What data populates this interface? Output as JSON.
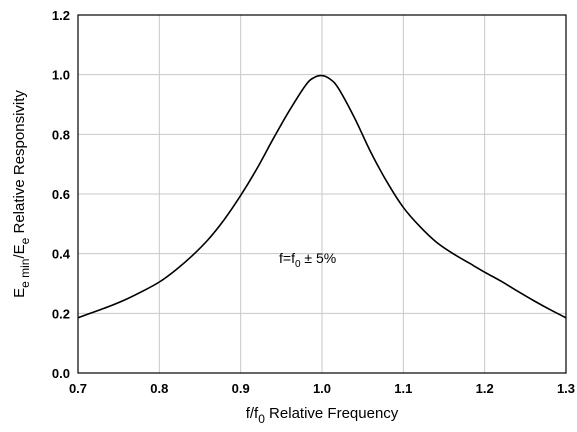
{
  "chart_data": {
    "type": "line",
    "title": "",
    "xlabel": {
      "main": "f/f",
      "sub": "0",
      "rest": " Relative Frequency"
    },
    "ylabel": {
      "p1": "E",
      "p1sub": "e min",
      "p2": "/E",
      "p2sub": "e",
      "rest": " Relative Responsivity"
    },
    "xlim": [
      0.7,
      1.3
    ],
    "ylim": [
      0.0,
      1.2
    ],
    "xticks": [
      "0.7",
      "0.8",
      "0.9",
      "1.0",
      "1.1",
      "1.2",
      "1.3"
    ],
    "yticks": [
      "0.0",
      "0.2",
      "0.4",
      "0.6",
      "0.8",
      "1.0",
      "1.2"
    ],
    "grid": true,
    "annotation": {
      "pre": "f=f",
      "sub": "0",
      "post": " ± 5%",
      "x": 1.0,
      "y": 0.385
    },
    "series": [
      {
        "x": [
          0.7,
          0.72,
          0.74,
          0.76,
          0.78,
          0.8,
          0.82,
          0.84,
          0.86,
          0.88,
          0.9,
          0.92,
          0.94,
          0.96,
          0.98,
          0.99,
          1.0,
          1.01,
          1.02,
          1.04,
          1.06,
          1.08,
          1.1,
          1.12,
          1.14,
          1.16,
          1.18,
          1.2,
          1.22,
          1.24,
          1.26,
          1.28,
          1.3
        ],
        "y": [
          0.185,
          0.205,
          0.225,
          0.248,
          0.275,
          0.305,
          0.345,
          0.392,
          0.447,
          0.515,
          0.595,
          0.685,
          0.785,
          0.88,
          0.965,
          0.99,
          0.997,
          0.985,
          0.955,
          0.855,
          0.74,
          0.64,
          0.555,
          0.492,
          0.44,
          0.402,
          0.37,
          0.338,
          0.308,
          0.275,
          0.243,
          0.213,
          0.185
        ]
      }
    ]
  }
}
